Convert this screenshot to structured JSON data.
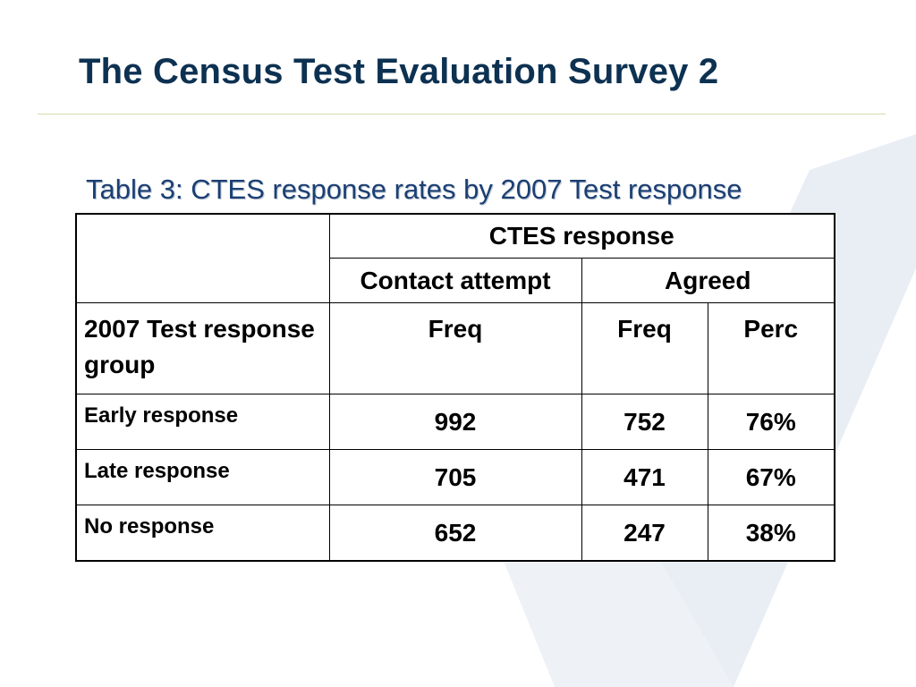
{
  "slide": {
    "title": "The Census Test Evaluation Survey 2",
    "caption": "Table 3: CTES response rates by 2007 Test response"
  },
  "table": {
    "group_header": "CTES response",
    "subheaders": [
      "Contact attempt",
      "Agreed"
    ],
    "row_header_label": "2007 Test response group",
    "column_labels": [
      "Freq",
      "Freq",
      "Perc"
    ],
    "rows": [
      {
        "label": "Early response",
        "contact_freq": "992",
        "agreed_freq": "752",
        "agreed_perc": "76%"
      },
      {
        "label": "Late response",
        "contact_freq": "705",
        "agreed_freq": "471",
        "agreed_perc": "67%"
      },
      {
        "label": "No response",
        "contact_freq": "652",
        "agreed_freq": "247",
        "agreed_perc": "38%"
      }
    ]
  }
}
